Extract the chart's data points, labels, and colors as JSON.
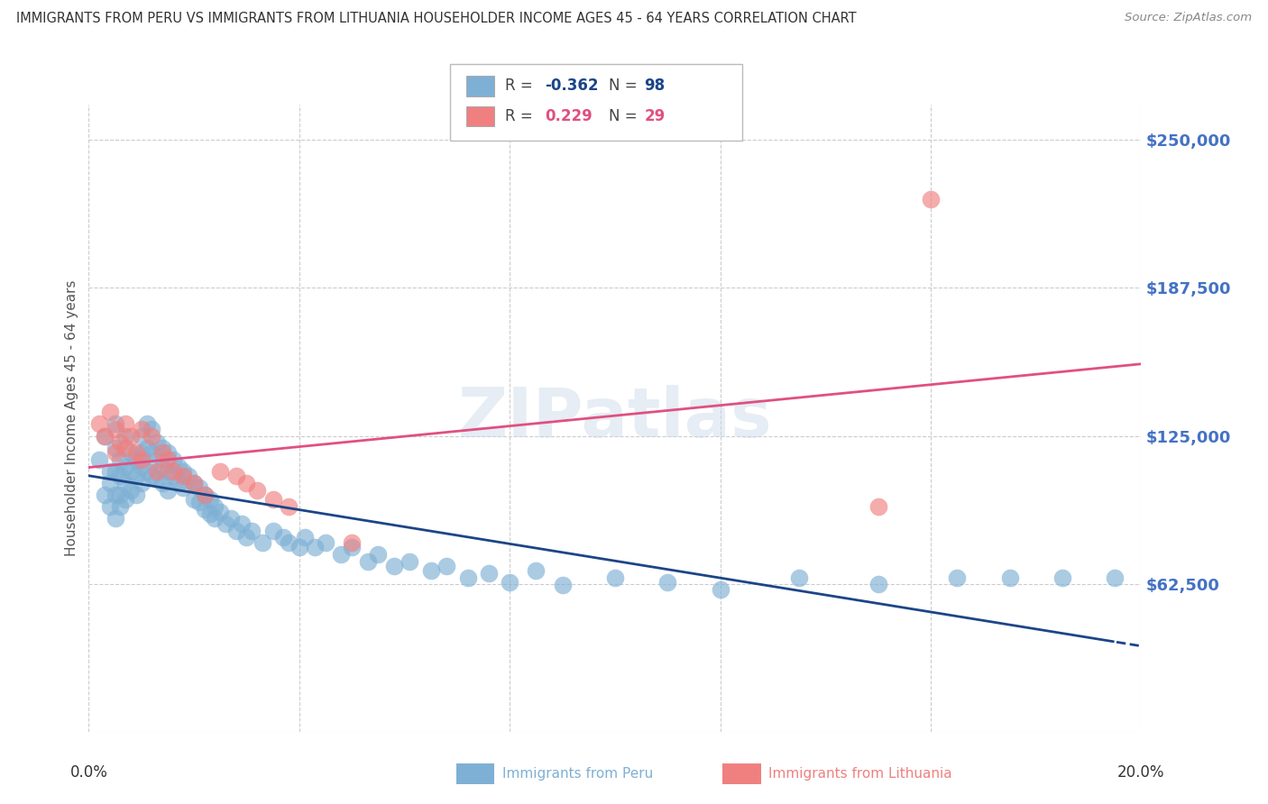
{
  "title": "IMMIGRANTS FROM PERU VS IMMIGRANTS FROM LITHUANIA HOUSEHOLDER INCOME AGES 45 - 64 YEARS CORRELATION CHART",
  "source": "Source: ZipAtlas.com",
  "ylabel": "Householder Income Ages 45 - 64 years",
  "xmin": 0.0,
  "xmax": 0.2,
  "ymin": 0,
  "ymax": 265000,
  "yticks": [
    0,
    62500,
    125000,
    187500,
    250000
  ],
  "ytick_labels": [
    "",
    "$62,500",
    "$125,000",
    "$187,500",
    "$250,000"
  ],
  "blue_R": -0.362,
  "blue_N": 98,
  "pink_R": 0.229,
  "pink_N": 29,
  "blue_color": "#7EB0D5",
  "pink_color": "#F08080",
  "blue_line_color": "#1C4587",
  "pink_line_color": "#E05080",
  "watermark": "ZIPatlas",
  "legend_label_blue": "Immigrants from Peru",
  "legend_label_pink": "Immigrants from Lithuania",
  "background_color": "#ffffff",
  "grid_color": "#cccccc",
  "title_color": "#333333",
  "axis_label_color": "#555555",
  "ytick_label_color": "#4472C4",
  "blue_scatter_x": [
    0.002,
    0.003,
    0.003,
    0.004,
    0.004,
    0.004,
    0.005,
    0.005,
    0.005,
    0.005,
    0.005,
    0.006,
    0.006,
    0.006,
    0.006,
    0.007,
    0.007,
    0.007,
    0.007,
    0.008,
    0.008,
    0.008,
    0.009,
    0.009,
    0.009,
    0.01,
    0.01,
    0.01,
    0.01,
    0.011,
    0.011,
    0.011,
    0.012,
    0.012,
    0.012,
    0.013,
    0.013,
    0.013,
    0.014,
    0.014,
    0.014,
    0.015,
    0.015,
    0.015,
    0.016,
    0.016,
    0.017,
    0.017,
    0.018,
    0.018,
    0.019,
    0.02,
    0.02,
    0.021,
    0.021,
    0.022,
    0.022,
    0.023,
    0.023,
    0.024,
    0.024,
    0.025,
    0.026,
    0.027,
    0.028,
    0.029,
    0.03,
    0.031,
    0.033,
    0.035,
    0.037,
    0.038,
    0.04,
    0.041,
    0.043,
    0.045,
    0.048,
    0.05,
    0.053,
    0.055,
    0.058,
    0.061,
    0.065,
    0.068,
    0.072,
    0.076,
    0.08,
    0.085,
    0.09,
    0.1,
    0.11,
    0.12,
    0.135,
    0.15,
    0.165,
    0.175,
    0.185,
    0.195
  ],
  "blue_scatter_y": [
    115000,
    125000,
    100000,
    110000,
    105000,
    95000,
    120000,
    110000,
    100000,
    90000,
    130000,
    108000,
    115000,
    100000,
    95000,
    125000,
    112000,
    105000,
    98000,
    118000,
    110000,
    102000,
    115000,
    108000,
    100000,
    125000,
    118000,
    112000,
    105000,
    130000,
    120000,
    110000,
    128000,
    118000,
    108000,
    122000,
    115000,
    107000,
    120000,
    112000,
    105000,
    118000,
    110000,
    102000,
    115000,
    108000,
    112000,
    105000,
    110000,
    103000,
    108000,
    105000,
    98000,
    103000,
    97000,
    100000,
    94000,
    98000,
    92000,
    95000,
    90000,
    93000,
    88000,
    90000,
    85000,
    88000,
    82000,
    85000,
    80000,
    85000,
    82000,
    80000,
    78000,
    82000,
    78000,
    80000,
    75000,
    78000,
    72000,
    75000,
    70000,
    72000,
    68000,
    70000,
    65000,
    67000,
    63000,
    68000,
    62000,
    65000,
    63000,
    60000,
    65000,
    62500,
    65000,
    65000,
    65000,
    65000
  ],
  "pink_scatter_x": [
    0.002,
    0.003,
    0.004,
    0.005,
    0.005,
    0.006,
    0.007,
    0.007,
    0.008,
    0.009,
    0.01,
    0.01,
    0.012,
    0.013,
    0.014,
    0.015,
    0.016,
    0.018,
    0.02,
    0.022,
    0.025,
    0.028,
    0.03,
    0.032,
    0.035,
    0.038,
    0.05,
    0.15,
    0.16
  ],
  "pink_scatter_y": [
    130000,
    125000,
    135000,
    128000,
    118000,
    122000,
    130000,
    120000,
    125000,
    118000,
    128000,
    115000,
    125000,
    110000,
    118000,
    115000,
    110000,
    108000,
    105000,
    100000,
    110000,
    108000,
    105000,
    102000,
    98000,
    95000,
    80000,
    95000,
    225000
  ]
}
